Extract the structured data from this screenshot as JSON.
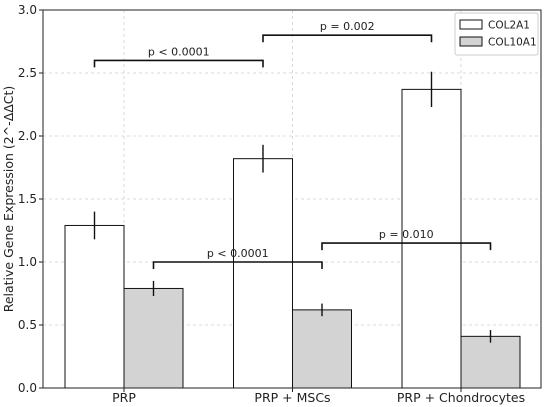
{
  "chart_data": {
    "type": "bar",
    "title": "",
    "xlabel": "",
    "ylabel": "Relative Gene Expression (2^-ΔΔCt)",
    "categories": [
      "PRP",
      "PRP + MSCs",
      "PRP + Chondrocytes"
    ],
    "ylim": [
      0,
      3.0
    ],
    "yticks": [
      "0.0",
      "0.5",
      "1.0",
      "1.5",
      "2.0",
      "2.5",
      "3.0"
    ],
    "grid": true,
    "legend_position": "top-right",
    "series": [
      {
        "name": "COL2A1",
        "color": "#ffffff",
        "values": [
          1.29,
          1.82,
          2.37
        ],
        "errors": [
          0.11,
          0.11,
          0.14
        ]
      },
      {
        "name": "COL10A1",
        "color": "#d3d3d3",
        "values": [
          0.79,
          0.62,
          0.41
        ],
        "errors": [
          0.06,
          0.05,
          0.05
        ]
      }
    ],
    "annotations": [
      {
        "label": "p < 0.0001",
        "from": {
          "category": 0,
          "series": 0
        },
        "to": {
          "category": 1,
          "series": 0
        },
        "y": 2.6
      },
      {
        "label": "p = 0.002",
        "from": {
          "category": 1,
          "series": 0
        },
        "to": {
          "category": 2,
          "series": 0
        },
        "y": 2.8
      },
      {
        "label": "p < 0.0001",
        "from": {
          "category": 0,
          "series": 1
        },
        "to": {
          "category": 1,
          "series": 1
        },
        "y": 1.0
      },
      {
        "label": "p = 0.010",
        "from": {
          "category": 1,
          "series": 1
        },
        "to": {
          "category": 2,
          "series": 1
        },
        "y": 1.15
      }
    ]
  }
}
